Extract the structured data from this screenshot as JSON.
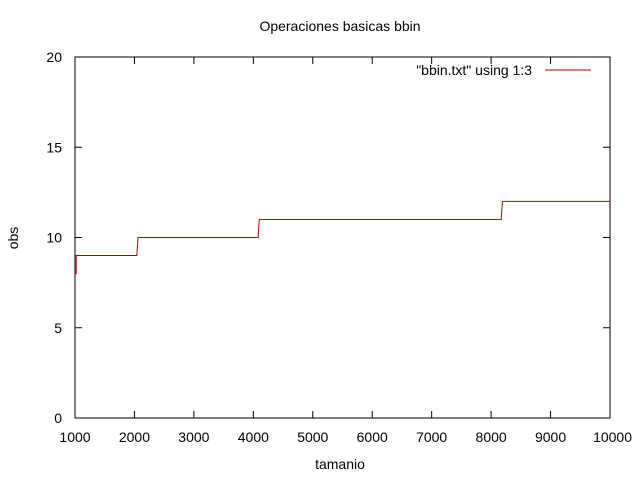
{
  "chart_data": {
    "type": "line",
    "title": "Operaciones basicas bbin",
    "xlabel": "tamanio",
    "ylabel": "obs",
    "xlim": [
      1000,
      10000
    ],
    "ylim": [
      0,
      20
    ],
    "xticks": [
      1000,
      2000,
      3000,
      4000,
      5000,
      6000,
      7000,
      8000,
      9000,
      10000
    ],
    "yticks": [
      0,
      5,
      10,
      15,
      20
    ],
    "grid": false,
    "legend_position": "top-right",
    "series": [
      {
        "name": "\"bbin.txt\" using 1:3",
        "color": "#b20000",
        "x": [
          1000,
          1020,
          1020,
          2040,
          2060,
          4080,
          4100,
          8170,
          8190,
          10000
        ],
        "y": [
          8,
          8,
          9,
          9,
          10,
          10,
          11,
          11,
          12,
          12
        ]
      }
    ]
  }
}
